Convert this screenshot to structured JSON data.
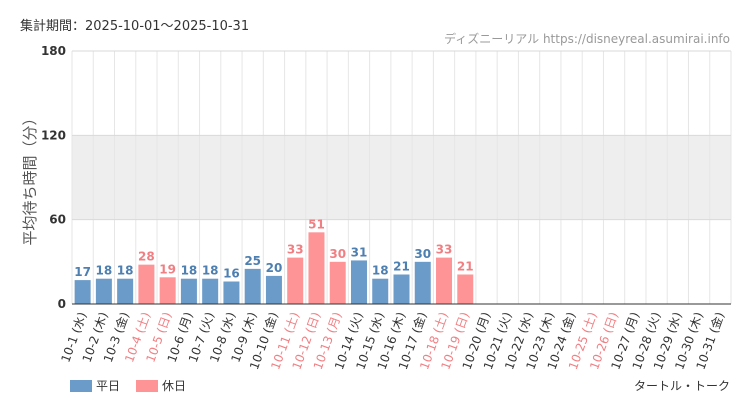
{
  "header": {
    "period": "集計期間：2025-10-01〜2025-10-31",
    "source": "ディズニーリアル https://disneyreal.asumirai.info"
  },
  "footer": {
    "attraction": "タートル・トーク"
  },
  "legend": {
    "weekday_label": "平日",
    "holiday_label": "休日"
  },
  "colors": {
    "weekday": "#6b9bc9",
    "holiday": "#ff9497",
    "weekday_text": "#4d7fb0",
    "holiday_text": "#f07f83",
    "tick_weekday": "#333333",
    "band": "#eeeeee",
    "grid": "#e6e6e6"
  },
  "chart_data": {
    "type": "bar",
    "ylabel": "平均待ち時間（分）",
    "ylim": [
      0,
      180
    ],
    "yticks": [
      0,
      60,
      120,
      180
    ],
    "bands": [
      [
        60,
        120
      ]
    ],
    "grid": true,
    "legend_position": "bottom-left",
    "categories": [
      "10-1 (水)",
      "10-2 (木)",
      "10-3 (金)",
      "10-4 (土)",
      "10-5 (日)",
      "10-6 (月)",
      "10-7 (火)",
      "10-8 (水)",
      "10-9 (木)",
      "10-10 (金)",
      "10-11 (土)",
      "10-12 (日)",
      "10-13 (月)",
      "10-14 (火)",
      "10-15 (水)",
      "10-16 (木)",
      "10-17 (金)",
      "10-18 (土)",
      "10-19 (日)",
      "10-20 (月)",
      "10-21 (火)",
      "10-22 (水)",
      "10-23 (木)",
      "10-24 (金)",
      "10-25 (土)",
      "10-26 (日)",
      "10-27 (月)",
      "10-28 (火)",
      "10-29 (水)",
      "10-30 (木)",
      "10-31 (金)"
    ],
    "day_type": [
      "weekday",
      "weekday",
      "weekday",
      "holiday",
      "holiday",
      "weekday",
      "weekday",
      "weekday",
      "weekday",
      "weekday",
      "holiday",
      "holiday",
      "holiday",
      "weekday",
      "weekday",
      "weekday",
      "weekday",
      "holiday",
      "holiday",
      "weekday",
      "weekday",
      "weekday",
      "weekday",
      "weekday",
      "holiday",
      "holiday",
      "weekday",
      "weekday",
      "weekday",
      "weekday",
      "weekday"
    ],
    "values": [
      17,
      18,
      18,
      28,
      19,
      18,
      18,
      16,
      25,
      20,
      33,
      51,
      30,
      31,
      18,
      21,
      30,
      33,
      21,
      null,
      null,
      null,
      null,
      null,
      null,
      null,
      null,
      null,
      null,
      null,
      null
    ]
  }
}
